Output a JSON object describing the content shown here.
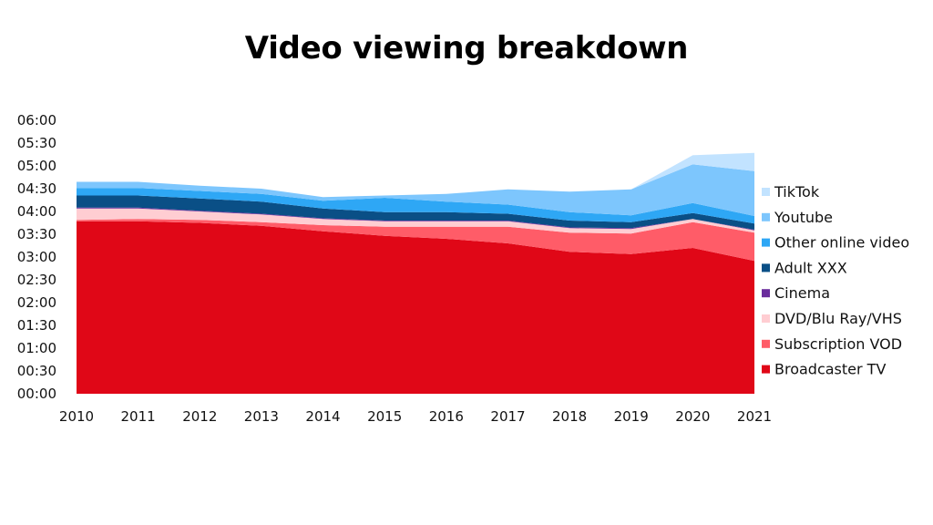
{
  "chart_data": {
    "type": "area",
    "title": "Video viewing breakdown",
    "stacked": true,
    "x": [
      "2010",
      "2011",
      "2012",
      "2013",
      "2014",
      "2015",
      "2016",
      "2017",
      "2018",
      "2019",
      "2020",
      "2021"
    ],
    "y_tick_labels": [
      "00:00",
      "00:30",
      "01:00",
      "01:30",
      "02:00",
      "02:30",
      "03:00",
      "03:30",
      "04:00",
      "04:30",
      "05:00",
      "05:30",
      "06:00"
    ],
    "y_unit": "minutes",
    "ylim": [
      0,
      360
    ],
    "legend_position": "right",
    "series": [
      {
        "name": "Broadcaster TV",
        "color": "#e00717",
        "values": [
          227,
          227,
          225,
          221,
          214,
          208,
          204,
          198,
          187,
          184,
          192,
          175
        ]
      },
      {
        "name": "Subscription VOD",
        "color": "#ff5c68",
        "values": [
          2,
          3,
          4,
          5,
          8,
          12,
          16,
          22,
          25,
          27,
          34,
          37
        ]
      },
      {
        "name": "DVD/Blu Ray/VHS",
        "color": "#ffcdd2",
        "values": [
          15,
          14,
          11,
          10,
          8,
          7,
          7,
          7,
          6,
          6,
          4,
          3
        ]
      },
      {
        "name": "Cinema",
        "color": "#6a2c9c",
        "values": [
          1,
          1,
          1,
          1,
          1,
          1,
          1,
          1,
          1,
          1,
          0,
          1
        ]
      },
      {
        "name": "Adult XXX",
        "color": "#0a4f86",
        "values": [
          16,
          16,
          16,
          16,
          13,
          11,
          11,
          9,
          9,
          8,
          8,
          8
        ]
      },
      {
        "name": "Other online video",
        "color": "#2ea7f5",
        "values": [
          10,
          10,
          10,
          10,
          10,
          19,
          14,
          12,
          11,
          9,
          13,
          10
        ]
      },
      {
        "name": "Youtube",
        "color": "#7dc6fd",
        "values": [
          8,
          8,
          7,
          7,
          5,
          3,
          10,
          20,
          27,
          34,
          51,
          59
        ]
      },
      {
        "name": "TikTok",
        "color": "#c2e3ff",
        "values": [
          0,
          0,
          0,
          0,
          0,
          0,
          0,
          0,
          0,
          0,
          12,
          24
        ]
      }
    ]
  }
}
